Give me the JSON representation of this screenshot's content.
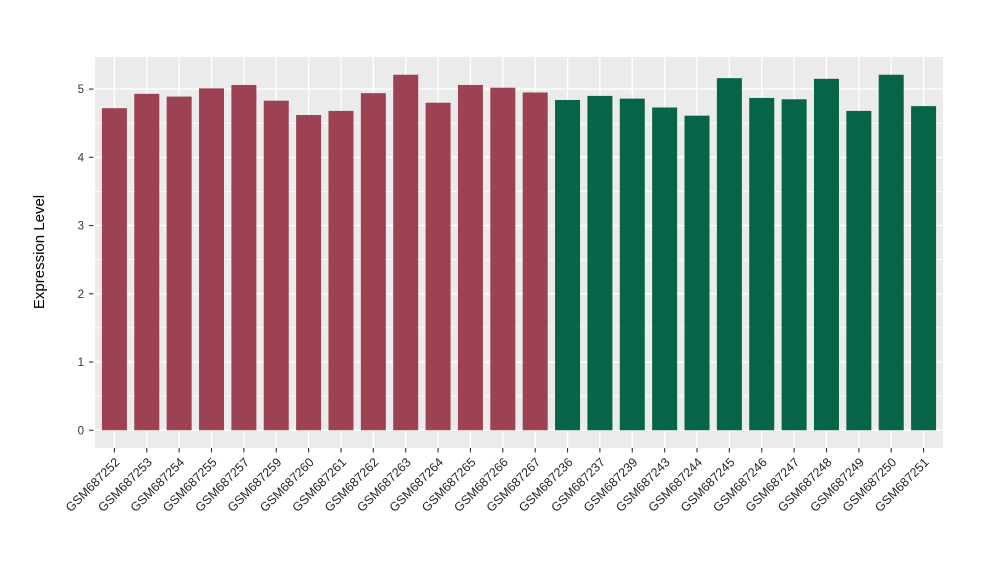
{
  "chart_data": {
    "type": "bar",
    "title": "",
    "xlabel": "",
    "ylabel": "Expression Level",
    "categories": [
      "GSM687252",
      "GSM687253",
      "GSM687254",
      "GSM687255",
      "GSM687257",
      "GSM687259",
      "GSM687260",
      "GSM687261",
      "GSM687262",
      "GSM687263",
      "GSM687264",
      "GSM687265",
      "GSM687266",
      "GSM687267",
      "GSM687236",
      "GSM687237",
      "GSM687239",
      "GSM687243",
      "GSM687244",
      "GSM687245",
      "GSM687246",
      "GSM687247",
      "GSM687248",
      "GSM687249",
      "GSM687250",
      "GSM687251"
    ],
    "values": [
      4.72,
      4.93,
      4.89,
      5.01,
      5.06,
      4.83,
      4.62,
      4.68,
      4.94,
      5.21,
      4.8,
      5.06,
      5.02,
      4.95,
      4.84,
      4.9,
      4.86,
      4.73,
      4.61,
      5.16,
      4.87,
      4.85,
      5.15,
      4.68,
      5.21,
      4.75
    ],
    "bar_groups": [
      "group1",
      "group1",
      "group1",
      "group1",
      "group1",
      "group1",
      "group1",
      "group1",
      "group1",
      "group1",
      "group1",
      "group1",
      "group1",
      "group1",
      "group2",
      "group2",
      "group2",
      "group2",
      "group2",
      "group2",
      "group2",
      "group2",
      "group2",
      "group2",
      "group2",
      "group2"
    ],
    "group_colors": {
      "group1": "#9C4252",
      "group2": "#066549"
    },
    "yticks": [
      0,
      1,
      2,
      3,
      4,
      5
    ],
    "minor_yticks": [
      0.5,
      1.5,
      2.5,
      3.5,
      4.5
    ],
    "ylim": [
      -0.26,
      5.47
    ],
    "grid": "on",
    "legend_position": "none",
    "panel_bg": "#EBEBEB",
    "grid_color": "#FFFFFF",
    "tick_mark_color": "#333333",
    "tick_label_color": "#333333",
    "axis_title_color": "#000000"
  }
}
